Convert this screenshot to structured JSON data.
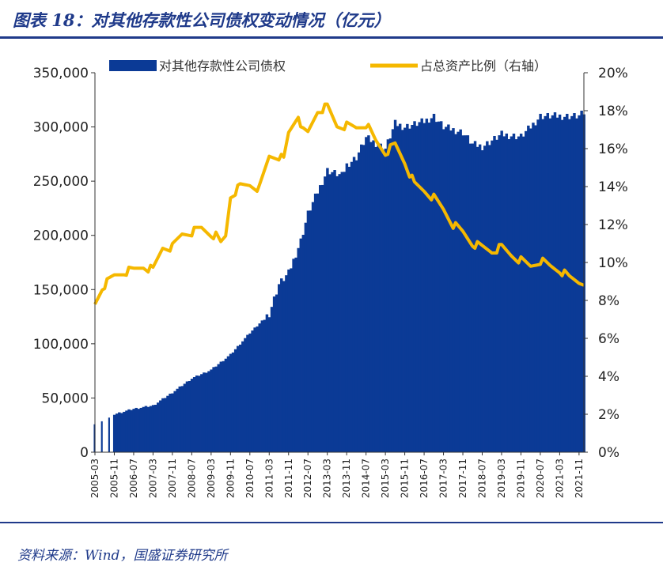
{
  "header": {
    "title": "图表 18：对其他存款性公司债权变动情况（亿元）"
  },
  "footer": {
    "source": "资料来源：Wind，国盛证券研究所"
  },
  "colors": {
    "bars": "#0b3a96",
    "line": "#f5b800",
    "title": "#1f3a8a",
    "axis": "#333333"
  },
  "chart_data": {
    "type": "bar+line",
    "left_axis": {
      "min": 0,
      "max": 350000,
      "ticks": [
        "0",
        "50,000",
        "100,000",
        "150,000",
        "200,000",
        "250,000",
        "300,000",
        "350,000"
      ]
    },
    "right_axis": {
      "min": 0,
      "max": 20,
      "ticks": [
        "0%",
        "2%",
        "4%",
        "6%",
        "8%",
        "10%",
        "12%",
        "14%",
        "16%",
        "18%",
        "20%"
      ]
    },
    "x_labels": [
      "2005-03",
      "2005-11",
      "2006-07",
      "2007-03",
      "2007-11",
      "2008-07",
      "2009-03",
      "2009-11",
      "2010-07",
      "2011-03",
      "2011-11",
      "2012-07",
      "2013-03",
      "2013-11",
      "2014-07",
      "2015-03",
      "2015-11",
      "2016-07",
      "2017-03",
      "2017-11",
      "2018-07",
      "2019-03",
      "2019-11",
      "2020-07",
      "2021-03",
      "2021-11"
    ],
    "legend": {
      "bar_label": "对其他存款性公司债权",
      "line_label": "占总资产比例（右轴）",
      "position": "top"
    },
    "series": [
      {
        "name": "对其他存款性公司债权",
        "kind": "bar",
        "axis": "left",
        "anchors": [
          [
            "2005-03",
            25000
          ],
          [
            "2005-08",
            30000
          ],
          [
            "2005-11",
            35000
          ],
          [
            "2006-07",
            40000
          ],
          [
            "2007-03",
            43000
          ],
          [
            "2007-11",
            55000
          ],
          [
            "2008-07",
            68000
          ],
          [
            "2009-03",
            76000
          ],
          [
            "2009-11",
            90000
          ],
          [
            "2010-07",
            110000
          ],
          [
            "2011-03",
            128000
          ],
          [
            "2011-07",
            155000
          ],
          [
            "2011-11",
            165000
          ],
          [
            "2012-04",
            195000
          ],
          [
            "2012-07",
            220000
          ],
          [
            "2012-09",
            230000
          ],
          [
            "2013-03",
            260000
          ],
          [
            "2013-09",
            255000
          ],
          [
            "2013-11",
            265000
          ],
          [
            "2014-03",
            272000
          ],
          [
            "2014-07",
            290000
          ],
          [
            "2015-03",
            280000
          ],
          [
            "2015-07",
            303000
          ],
          [
            "2015-11",
            300000
          ],
          [
            "2016-07",
            305000
          ],
          [
            "2016-11",
            310000
          ],
          [
            "2017-03",
            300000
          ],
          [
            "2017-11",
            295000
          ],
          [
            "2018-03",
            284000
          ],
          [
            "2018-07",
            282000
          ],
          [
            "2019-03",
            293000
          ],
          [
            "2019-11",
            291000
          ],
          [
            "2020-03",
            300000
          ],
          [
            "2020-07",
            310000
          ],
          [
            "2021-03",
            310000
          ],
          [
            "2021-11",
            310000
          ],
          [
            "2022-01",
            313000
          ]
        ]
      },
      {
        "name": "占总资产比例（右轴）",
        "kind": "line",
        "axis": "right",
        "unit": "%",
        "anchors": [
          [
            "2005-03",
            7.8
          ],
          [
            "2005-06",
            8.7
          ],
          [
            "2005-11",
            9.3
          ],
          [
            "2006-03",
            9.5
          ],
          [
            "2006-07",
            9.6
          ],
          [
            "2006-11",
            9.8
          ],
          [
            "2007-03",
            9.6
          ],
          [
            "2007-07",
            10.8
          ],
          [
            "2007-11",
            10.8
          ],
          [
            "2008-03",
            11.5
          ],
          [
            "2008-07",
            11.6
          ],
          [
            "2008-11",
            11.8
          ],
          [
            "2009-03",
            11.5
          ],
          [
            "2009-05",
            11.4
          ],
          [
            "2009-07",
            11.0
          ],
          [
            "2009-09",
            11.4
          ],
          [
            "2009-11",
            13.5
          ],
          [
            "2010-03",
            14.0
          ],
          [
            "2010-07",
            14.1
          ],
          [
            "2010-11",
            13.9
          ],
          [
            "2011-03",
            15.6
          ],
          [
            "2011-07",
            15.6
          ],
          [
            "2011-09",
            15.4
          ],
          [
            "2011-11",
            16.8
          ],
          [
            "2012-03",
            17.8
          ],
          [
            "2012-05",
            16.9
          ],
          [
            "2012-07",
            16.8
          ],
          [
            "2012-09",
            17.4
          ],
          [
            "2012-11",
            18.0
          ],
          [
            "2013-03",
            18.2
          ],
          [
            "2013-07",
            17.2
          ],
          [
            "2013-11",
            17.2
          ],
          [
            "2014-03",
            17.1
          ],
          [
            "2014-07",
            17.3
          ],
          [
            "2014-11",
            16.4
          ],
          [
            "2015-03",
            15.8
          ],
          [
            "2015-07",
            16.2
          ],
          [
            "2015-11",
            15.3
          ],
          [
            "2016-03",
            14.1
          ],
          [
            "2016-07",
            13.8
          ],
          [
            "2016-11",
            13.4
          ],
          [
            "2017-03",
            12.8
          ],
          [
            "2017-07",
            12.0
          ],
          [
            "2017-11",
            11.6
          ],
          [
            "2018-03",
            11.0
          ],
          [
            "2018-07",
            10.8
          ],
          [
            "2018-11",
            10.6
          ],
          [
            "2019-03",
            10.8
          ],
          [
            "2019-07",
            10.4
          ],
          [
            "2019-11",
            10.1
          ],
          [
            "2020-03",
            9.8
          ],
          [
            "2020-07",
            10.1
          ],
          [
            "2020-11",
            9.8
          ],
          [
            "2021-03",
            9.6
          ],
          [
            "2021-07",
            9.2
          ],
          [
            "2021-11",
            9.0
          ],
          [
            "2022-01",
            9.0
          ]
        ]
      }
    ]
  }
}
